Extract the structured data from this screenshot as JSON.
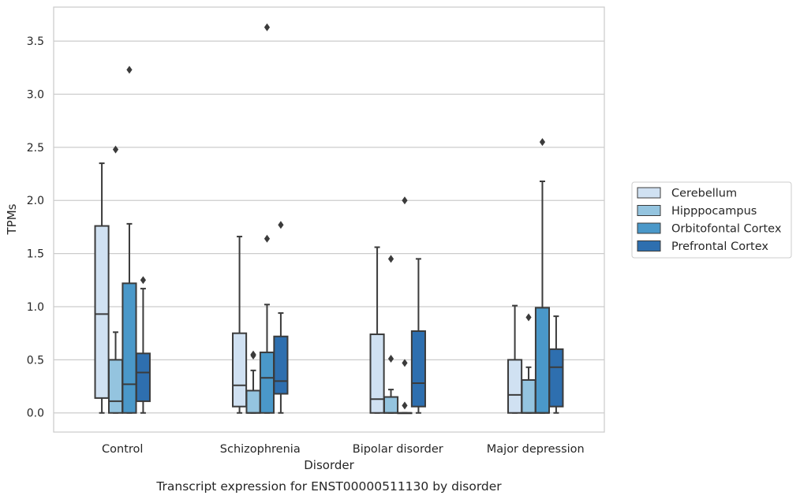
{
  "caption": "Transcript expression for ENST00000511130 by disorder",
  "chart_data": {
    "type": "box",
    "xlabel": "Disorder",
    "ylabel": "TPMs",
    "ylim": [
      -0.18,
      3.82
    ],
    "yticks": [
      0.0,
      0.5,
      1.0,
      1.5,
      2.0,
      2.5,
      3.0,
      3.5
    ],
    "ytick_labels": [
      "0.0",
      "0.5",
      "1.0",
      "1.5",
      "2.0",
      "2.5",
      "3.0",
      "3.5"
    ],
    "categories": [
      "Control",
      "Schizophrenia",
      "Bipolar disorder",
      "Major depression"
    ],
    "grid": "horizontal",
    "legend_position": "right",
    "series": [
      {
        "name": "Cerebellum",
        "color": "#d0e1f2",
        "boxes": [
          {
            "whisker_low": 0.0,
            "q1": 0.14,
            "median": 0.93,
            "q3": 1.76,
            "whisker_high": 2.35,
            "outliers": []
          },
          {
            "whisker_low": 0.0,
            "q1": 0.06,
            "median": 0.26,
            "q3": 0.75,
            "whisker_high": 1.66,
            "outliers": []
          },
          {
            "whisker_low": 0.0,
            "q1": 0.0,
            "median": 0.13,
            "q3": 0.74,
            "whisker_high": 1.56,
            "outliers": []
          },
          {
            "whisker_low": 0.0,
            "q1": 0.0,
            "median": 0.17,
            "q3": 0.5,
            "whisker_high": 1.01,
            "outliers": []
          }
        ]
      },
      {
        "name": "Hipppocampus",
        "color": "#94c4df",
        "boxes": [
          {
            "whisker_low": 0.0,
            "q1": 0.0,
            "median": 0.11,
            "q3": 0.5,
            "whisker_high": 0.76,
            "outliers": [
              2.48
            ]
          },
          {
            "whisker_low": 0.0,
            "q1": 0.0,
            "median": 0.0,
            "q3": 0.21,
            "whisker_high": 0.4,
            "outliers": [
              0.54,
              0.55
            ]
          },
          {
            "whisker_low": 0.0,
            "q1": 0.0,
            "median": 0.0,
            "q3": 0.15,
            "whisker_high": 0.22,
            "outliers": [
              0.51,
              1.45
            ]
          },
          {
            "whisker_low": 0.0,
            "q1": 0.0,
            "median": 0.0,
            "q3": 0.31,
            "whisker_high": 0.43,
            "outliers": [
              0.9
            ]
          }
        ]
      },
      {
        "name": "Orbitofontal Cortex",
        "color": "#4a98c9",
        "boxes": [
          {
            "whisker_low": 0.0,
            "q1": 0.0,
            "median": 0.27,
            "q3": 1.22,
            "whisker_high": 1.78,
            "outliers": [
              3.23
            ]
          },
          {
            "whisker_low": 0.0,
            "q1": 0.0,
            "median": 0.33,
            "q3": 0.57,
            "whisker_high": 1.02,
            "outliers": [
              1.64,
              3.63
            ]
          },
          {
            "whisker_low": 0.0,
            "q1": 0.0,
            "median": 0.0,
            "q3": 0.0,
            "whisker_high": 0.0,
            "outliers": [
              0.07,
              0.47,
              2.0
            ]
          },
          {
            "whisker_low": 0.0,
            "q1": 0.0,
            "median": 0.0,
            "q3": 0.99,
            "whisker_high": 2.18,
            "outliers": [
              2.55
            ]
          }
        ]
      },
      {
        "name": "Prefrontal Cortex",
        "color": "#2e6faf",
        "boxes": [
          {
            "whisker_low": 0.0,
            "q1": 0.11,
            "median": 0.38,
            "q3": 0.56,
            "whisker_high": 1.17,
            "outliers": [
              1.25
            ]
          },
          {
            "whisker_low": 0.0,
            "q1": 0.18,
            "median": 0.3,
            "q3": 0.72,
            "whisker_high": 0.94,
            "outliers": [
              1.77
            ]
          },
          {
            "whisker_low": 0.0,
            "q1": 0.06,
            "median": 0.28,
            "q3": 0.77,
            "whisker_high": 1.45,
            "outliers": []
          },
          {
            "whisker_low": 0.0,
            "q1": 0.06,
            "median": 0.43,
            "q3": 0.6,
            "whisker_high": 0.91,
            "outliers": []
          }
        ]
      }
    ]
  }
}
